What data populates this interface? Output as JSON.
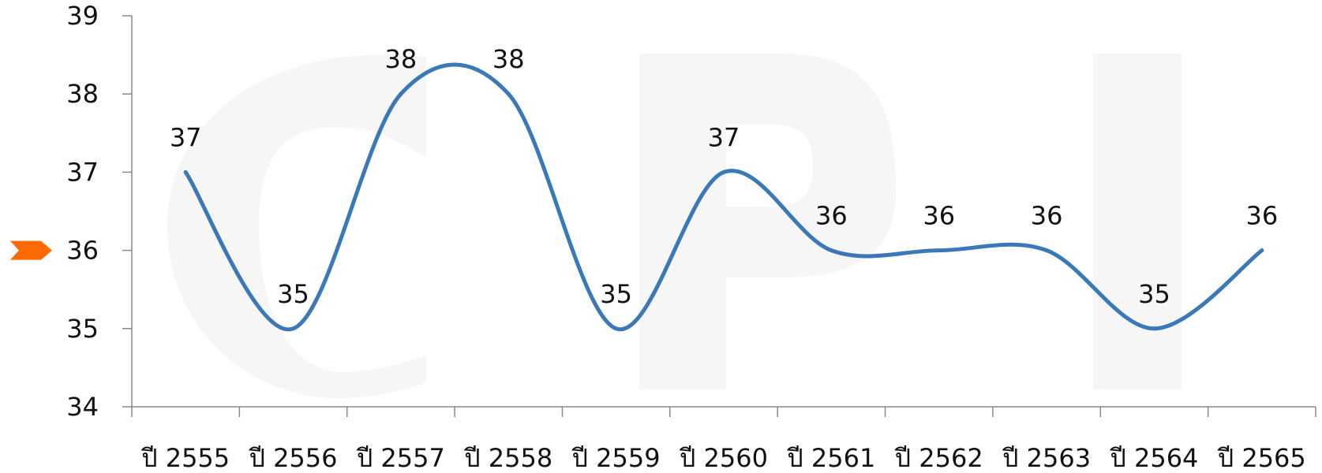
{
  "chart_data": {
    "type": "line",
    "title": "",
    "xlabel": "",
    "ylabel": "",
    "categories": [
      "ปี 2555",
      "ปี 2556",
      "ปี 2557",
      "ปี 2558",
      "ปี 2559",
      "ปี 2560",
      "ปี 2561",
      "ปี 2562",
      "ปี 2563",
      "ปี 2564",
      "ปี 2565"
    ],
    "series": [
      {
        "values": [
          37,
          35,
          38,
          38,
          35,
          37,
          36,
          36,
          36,
          35,
          36
        ]
      }
    ],
    "ylim": [
      34,
      39
    ],
    "yticks": [
      "34",
      "35",
      "36",
      "37",
      "38",
      "39"
    ],
    "grid": false,
    "line_color": "#3a78b8",
    "smooth": true,
    "marker": {
      "value": 36,
      "color": "#ff6a00"
    }
  },
  "watermark": {
    "text": "CPI",
    "color": "#f6f6f6"
  }
}
